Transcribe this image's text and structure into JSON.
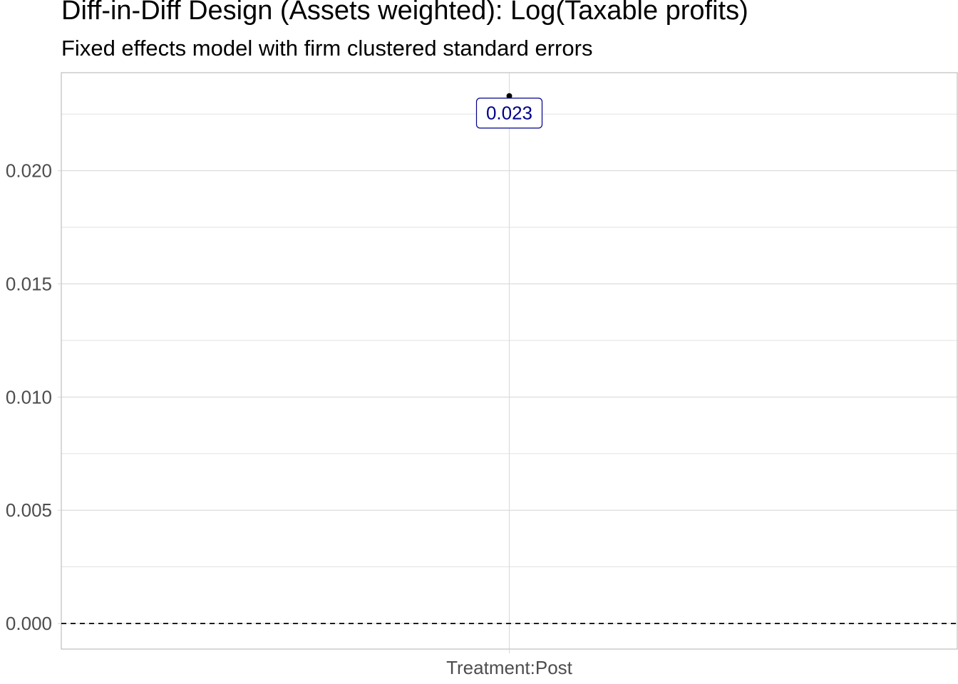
{
  "title": "Diff-in-Diff Design (Assets weighted): Log(Taxable profits)",
  "subtitle": "Fixed effects model with firm clustered standard errors",
  "chart_data": {
    "type": "scatter",
    "title": "Diff-in-Diff Design (Assets weighted): Log(Taxable profits)",
    "subtitle": "Fixed effects model with firm clustered standard errors",
    "xlabel": "",
    "ylabel": "",
    "categories": [
      "Treatment:Post"
    ],
    "values": [
      0.0233
    ],
    "point_labels": [
      "0.023"
    ],
    "ylim": [
      -0.00113,
      0.02433
    ],
    "yticks": [
      0.0,
      0.005,
      0.01,
      0.015,
      0.02
    ],
    "ytick_labels": [
      "0.000",
      "0.005",
      "0.010",
      "0.015",
      "0.020"
    ],
    "reference_line": {
      "y": 0,
      "style": "dashed"
    },
    "grid": true,
    "colors": {
      "point": "#000000",
      "label_text": "#00008B",
      "label_border": "#00008B",
      "grid": "#d9d9d9",
      "panel_border": "#bfbfbf",
      "tick_text": "#4d4d4d"
    }
  }
}
